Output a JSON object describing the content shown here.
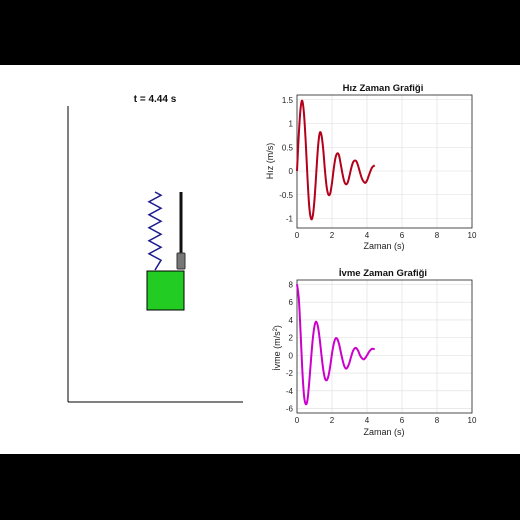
{
  "animation": {
    "time_label": "t = 4.44 s",
    "spring_color": "#1a1a8c",
    "mass_color": "#22cc22",
    "damper_color": "#111111"
  },
  "velocity_plot": {
    "title": "Hız Zaman Grafiği",
    "xlabel": "Zaman (s)",
    "ylabel": "Hız (m/s)",
    "line_color": "#b3001b"
  },
  "accel_plot": {
    "title": "İvme Zaman Grafiği",
    "xlabel": "Zaman (s)",
    "ylabel_text": "İvme (m/s",
    "ylabel_sup": "2",
    "ylabel_close": ")",
    "line_color": "#cc00cc"
  },
  "chart_data": [
    {
      "type": "line",
      "title": "Hız Zaman Grafiği",
      "xlabel": "Zaman (s)",
      "ylabel": "Hız (m/s)",
      "xlim": [
        0,
        10
      ],
      "ylim": [
        -1.2,
        1.6
      ],
      "xticks": [
        0,
        2,
        4,
        6,
        8,
        10
      ],
      "yticks": [
        -1,
        -0.5,
        0,
        0.5,
        1,
        1.5
      ],
      "ytick_labels": [
        "-1",
        "-0.5",
        "0",
        "0.5",
        "1",
        "1.5"
      ],
      "grid": true,
      "series": [
        {
          "x": [
            0,
            0.1,
            0.2,
            0.3,
            0.4,
            0.5,
            0.6,
            0.7,
            0.8,
            0.9,
            1.0,
            1.1,
            1.2,
            1.3,
            1.4,
            1.5,
            1.6,
            1.7,
            1.8,
            1.9,
            2.0,
            2.1,
            2.2,
            2.3,
            2.4,
            2.5,
            2.6,
            2.7,
            2.8,
            2.9,
            3.0,
            3.1,
            3.2,
            3.3,
            3.4,
            3.5,
            3.6,
            3.7,
            3.8,
            3.9,
            4.0,
            4.1,
            4.2,
            4.3,
            4.44
          ],
          "y": [
            0,
            0.75,
            1.3,
            1.48,
            1.2,
            0.6,
            -0.15,
            -0.75,
            -1.0,
            -0.95,
            -0.6,
            -0.05,
            0.5,
            0.8,
            0.75,
            0.45,
            0.0,
            -0.35,
            -0.5,
            -0.47,
            -0.25,
            0.05,
            0.28,
            0.37,
            0.33,
            0.14,
            -0.06,
            -0.22,
            -0.28,
            -0.24,
            -0.1,
            0.06,
            0.18,
            0.22,
            0.2,
            0.1,
            -0.03,
            -0.15,
            -0.22,
            -0.25,
            -0.2,
            -0.1,
            0.0,
            0.08,
            0.12
          ]
        }
      ]
    },
    {
      "type": "line",
      "title": "İvme Zaman Grafiği",
      "xlabel": "Zaman (s)",
      "ylabel": "İvme (m/s²)",
      "xlim": [
        0,
        10
      ],
      "ylim": [
        -6.5,
        8.5
      ],
      "xticks": [
        0,
        2,
        4,
        6,
        8,
        10
      ],
      "yticks": [
        -6,
        -4,
        -2,
        0,
        2,
        4,
        6,
        8
      ],
      "ytick_labels": [
        "-6",
        "-4",
        "-2",
        "0",
        "2",
        "4",
        "6",
        "8"
      ],
      "grid": true,
      "series": [
        {
          "x": [
            0,
            0.1,
            0.2,
            0.3,
            0.4,
            0.5,
            0.6,
            0.7,
            0.8,
            0.9,
            1.0,
            1.1,
            1.2,
            1.3,
            1.4,
            1.5,
            1.6,
            1.7,
            1.8,
            1.9,
            2.0,
            2.1,
            2.2,
            2.3,
            2.4,
            2.5,
            2.6,
            2.7,
            2.8,
            2.9,
            3.0,
            3.1,
            3.2,
            3.3,
            3.4,
            3.5,
            3.6,
            3.7,
            3.8,
            3.9,
            4.0,
            4.1,
            4.2,
            4.3,
            4.44
          ],
          "y": [
            8.0,
            6.5,
            2.8,
            -1.5,
            -4.5,
            -5.5,
            -5.0,
            -3.0,
            -0.5,
            1.8,
            3.3,
            3.8,
            3.2,
            1.8,
            0.0,
            -1.6,
            -2.6,
            -2.8,
            -2.3,
            -1.2,
            0.2,
            1.3,
            1.9,
            1.85,
            1.3,
            0.4,
            -0.5,
            -1.2,
            -1.5,
            -1.3,
            -0.8,
            -0.1,
            0.5,
            0.8,
            0.8,
            0.5,
            0.0,
            -0.3,
            -0.45,
            -0.3,
            0.0,
            0.35,
            0.6,
            0.75,
            0.7
          ]
        }
      ]
    }
  ]
}
